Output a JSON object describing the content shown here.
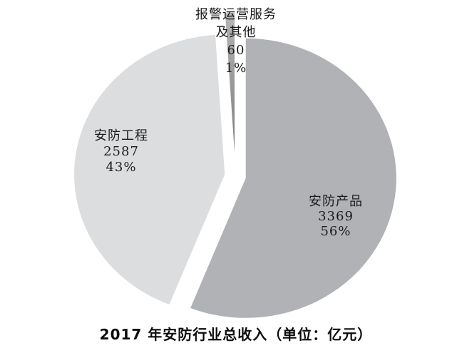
{
  "page": {
    "background_color": "#ffffff"
  },
  "title": {
    "text": "2017 年安防行业总收入（单位：亿元）"
  },
  "chart_data": {
    "type": "pie",
    "title": "2017 年安防行业总收入（单位：亿元）",
    "legend": "none",
    "start_angle_deg": 0,
    "direction": "clockwise",
    "style": "exploded",
    "slices": [
      {
        "label": "安防产品",
        "value": 3369,
        "value_label": "3369",
        "pct": 56,
        "pct_label": "56%",
        "color": "#b0b2b5"
      },
      {
        "label": "安防工程",
        "value": 2587,
        "value_label": "2587",
        "pct": 43,
        "pct_label": "43%",
        "color": "#dcddde"
      },
      {
        "label": "报警运营服务及其他",
        "label_line1": "报警运营服务",
        "label_line2": "及其他",
        "value": 60,
        "value_label": "60",
        "pct": 1,
        "pct_label": "1%",
        "color": "#9a9a9a",
        "color_top": "#b5b5b5",
        "color_tip": "#7d7d7d"
      }
    ]
  }
}
